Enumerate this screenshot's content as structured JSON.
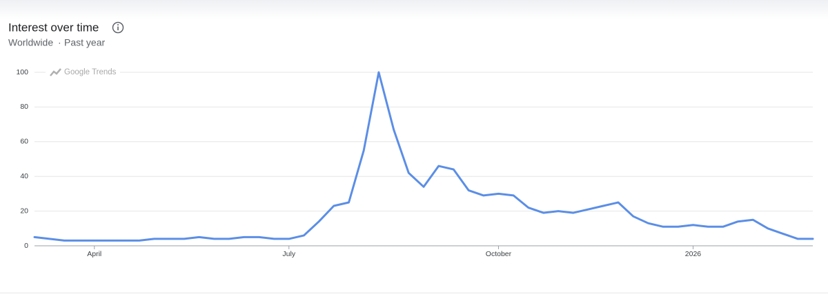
{
  "chart_data": {
    "type": "line",
    "title": "Interest over time",
    "region": "Worldwide",
    "separator": "·",
    "period": "Past year",
    "watermark": "Google Trends",
    "categories": [
      null,
      null,
      null,
      null,
      "April",
      null,
      null,
      null,
      null,
      null,
      null,
      null,
      null,
      null,
      null,
      null,
      null,
      "July",
      null,
      null,
      null,
      null,
      null,
      null,
      null,
      null,
      null,
      null,
      null,
      null,
      null,
      "October",
      null,
      null,
      null,
      null,
      null,
      null,
      null,
      null,
      null,
      null,
      null,
      null,
      "2026",
      null,
      null,
      null,
      null,
      null,
      null,
      null,
      null
    ],
    "values": [
      5,
      4,
      3,
      3,
      3,
      3,
      3,
      3,
      4,
      4,
      4,
      5,
      4,
      4,
      5,
      5,
      4,
      4,
      6,
      14,
      23,
      25,
      55,
      100,
      67,
      42,
      34,
      46,
      44,
      32,
      29,
      30,
      29,
      22,
      19,
      20,
      19,
      21,
      23,
      25,
      17,
      13,
      11,
      11,
      12,
      11,
      11,
      14,
      15,
      10,
      7,
      4,
      4
    ],
    "color": "#5b8ee6",
    "ylim": [
      0,
      100
    ],
    "yticks": [
      0,
      20,
      40,
      60,
      80,
      100
    ],
    "grid": true
  }
}
